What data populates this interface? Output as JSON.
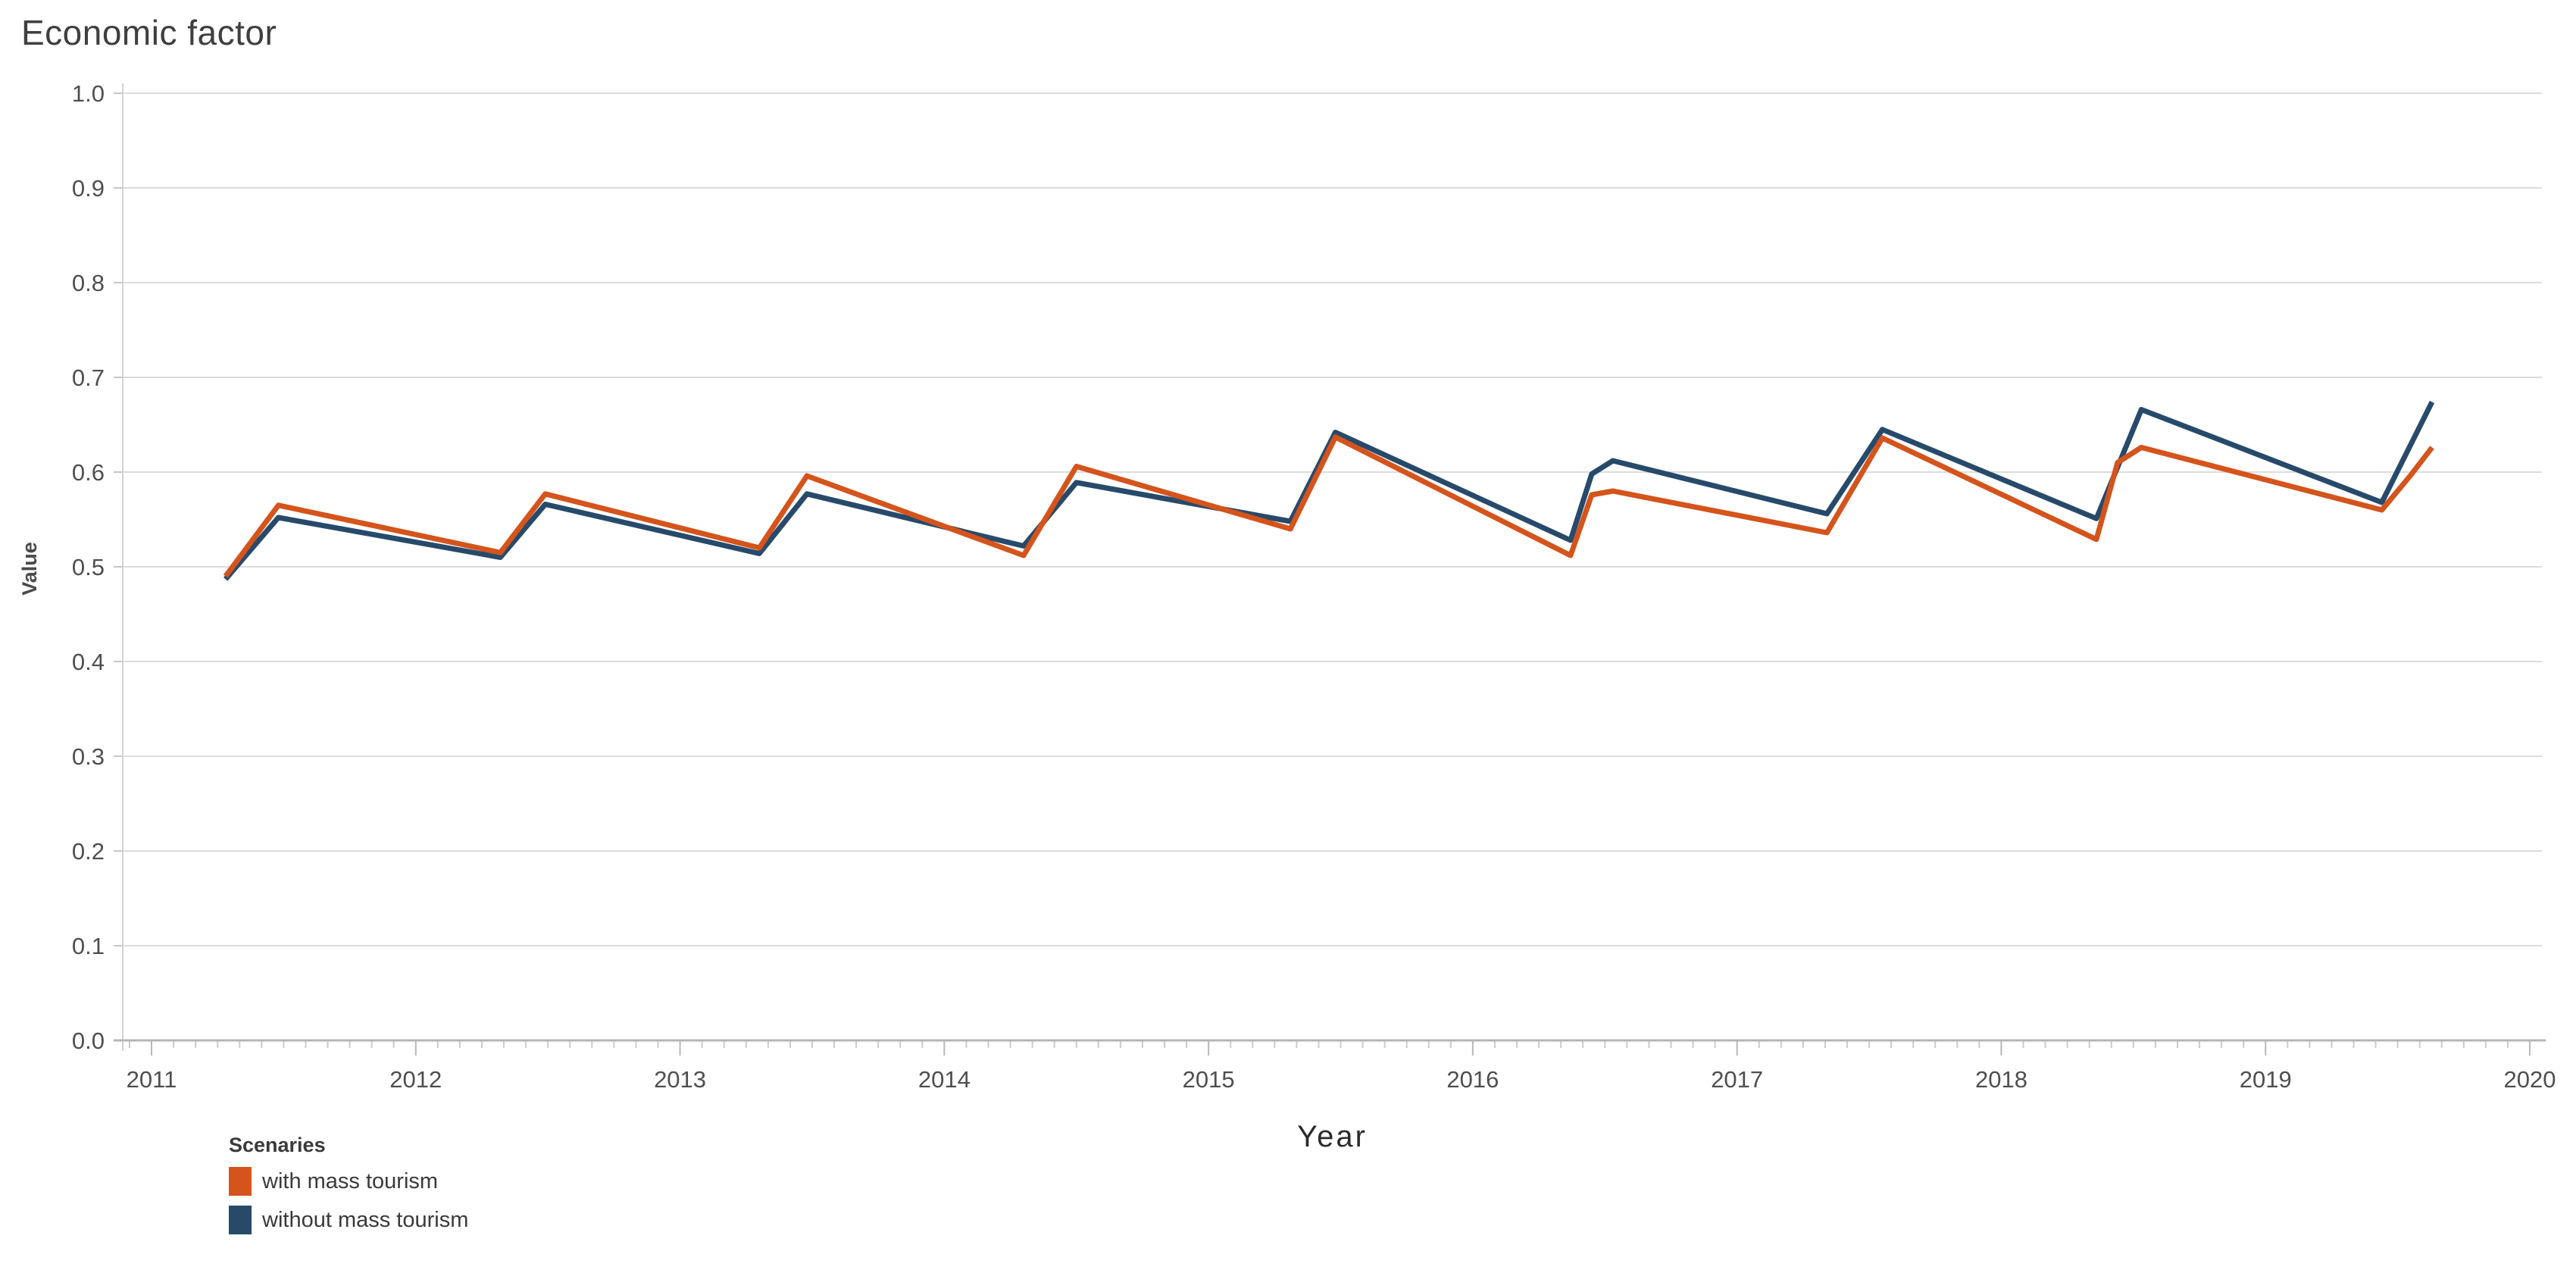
{
  "title": "Economic factor",
  "axes": {
    "x_label": "Year",
    "y_label": "Value"
  },
  "legend": {
    "title": "Scenaries",
    "items": [
      {
        "label": "with mass tourism",
        "color": "#d4541c"
      },
      {
        "label": "without mass tourism",
        "color": "#274a6b"
      }
    ]
  },
  "chart_data": {
    "type": "line",
    "title": "Economic factor",
    "xlabel": "Year",
    "ylabel": "Value",
    "xlim": [
      2010.89,
      2020.05
    ],
    "ylim": [
      0.0,
      1.0
    ],
    "grid": "horizontal",
    "legend_position": "bottom-left",
    "x_ticks": [
      {
        "v": 2011,
        "label": "2011"
      },
      {
        "v": 2012,
        "label": "2012"
      },
      {
        "v": 2013,
        "label": "2013"
      },
      {
        "v": 2014,
        "label": "2014"
      },
      {
        "v": 2015,
        "label": "2015"
      },
      {
        "v": 2016,
        "label": "2016"
      },
      {
        "v": 2017,
        "label": "2017"
      },
      {
        "v": 2018,
        "label": "2018"
      },
      {
        "v": 2019,
        "label": "2019"
      },
      {
        "v": 2020,
        "label": "2020"
      }
    ],
    "y_ticks": [
      {
        "v": 0.0,
        "label": "0.0"
      },
      {
        "v": 0.1,
        "label": "0.1"
      },
      {
        "v": 0.2,
        "label": "0.2"
      },
      {
        "v": 0.3,
        "label": "0.3"
      },
      {
        "v": 0.4,
        "label": "0.4"
      },
      {
        "v": 0.5,
        "label": "0.5"
      },
      {
        "v": 0.6,
        "label": "0.6"
      },
      {
        "v": 0.7,
        "label": "0.7"
      },
      {
        "v": 0.8,
        "label": "0.8"
      },
      {
        "v": 0.9,
        "label": "0.9"
      },
      {
        "v": 1.0,
        "label": "1.0"
      }
    ],
    "series": [
      {
        "name": "with mass tourism",
        "color": "#d4541c",
        "points": [
          [
            2011.28,
            0.49
          ],
          [
            2011.48,
            0.565
          ],
          [
            2012.32,
            0.515
          ],
          [
            2012.49,
            0.577
          ],
          [
            2013.3,
            0.52
          ],
          [
            2013.48,
            0.596
          ],
          [
            2014.3,
            0.512
          ],
          [
            2014.5,
            0.606
          ],
          [
            2015.31,
            0.54
          ],
          [
            2015.48,
            0.637
          ],
          [
            2016.37,
            0.512
          ],
          [
            2016.45,
            0.576
          ],
          [
            2016.53,
            0.58
          ],
          [
            2017.34,
            0.536
          ],
          [
            2017.55,
            0.636
          ],
          [
            2018.36,
            0.529
          ],
          [
            2018.44,
            0.61
          ],
          [
            2018.53,
            0.626
          ],
          [
            2019.44,
            0.56
          ],
          [
            2019.55,
            0.597
          ],
          [
            2019.63,
            0.626
          ]
        ]
      },
      {
        "name": "without mass tourism",
        "color": "#274a6b",
        "points": [
          [
            2011.28,
            0.487
          ],
          [
            2011.48,
            0.552
          ],
          [
            2012.32,
            0.51
          ],
          [
            2012.49,
            0.566
          ],
          [
            2013.3,
            0.514
          ],
          [
            2013.48,
            0.577
          ],
          [
            2014.3,
            0.522
          ],
          [
            2014.5,
            0.589
          ],
          [
            2015.31,
            0.548
          ],
          [
            2015.48,
            0.642
          ],
          [
            2016.37,
            0.528
          ],
          [
            2016.45,
            0.598
          ],
          [
            2016.53,
            0.612
          ],
          [
            2017.34,
            0.556
          ],
          [
            2017.55,
            0.645
          ],
          [
            2018.36,
            0.551
          ],
          [
            2018.53,
            0.666
          ],
          [
            2019.44,
            0.568
          ],
          [
            2019.63,
            0.674
          ]
        ]
      }
    ]
  }
}
